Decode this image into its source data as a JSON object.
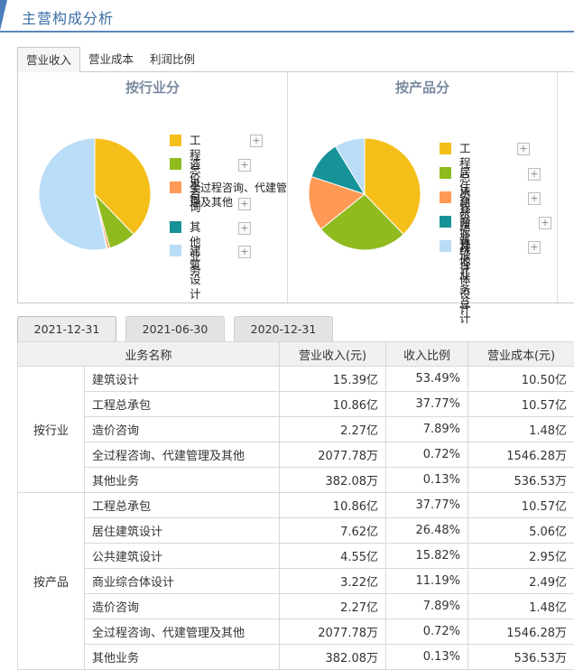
{
  "header": {
    "title": "主营构成分析"
  },
  "top_tabs": [
    {
      "label": "营业收入",
      "active": true
    },
    {
      "label": "营业成本",
      "active": false
    },
    {
      "label": "利润比例",
      "active": false
    }
  ],
  "chart_data": [
    {
      "type": "pie",
      "title": "按行业分",
      "categories": [
        "工程总承包",
        "造价咨询",
        "全过程咨询、代建管理及其他",
        "其他业务",
        "建筑设计"
      ],
      "values": [
        37.77,
        7.89,
        0.72,
        0.13,
        53.49
      ],
      "colors": [
        "#f5bf1a",
        "#8fbb1f",
        "#ff9955",
        "#179397",
        "#b9dcf7"
      ],
      "legend_position": "right"
    },
    {
      "type": "pie",
      "title": "按产品分",
      "categories": [
        "工程总承包",
        "居住建筑设计",
        "公共建筑设计",
        "商业综合体设计",
        "其他业务总计"
      ],
      "values": [
        37.77,
        26.48,
        15.82,
        11.19,
        8.74
      ],
      "colors": [
        "#f5bf1a",
        "#8fbb1f",
        "#ff9955",
        "#179397",
        "#b9dcf7"
      ],
      "legend_position": "right"
    }
  ],
  "legend_plus_icon": "plus-icon",
  "date_tabs": [
    {
      "label": "2021-12-31",
      "active": true
    },
    {
      "label": "2021-06-30",
      "active": false
    },
    {
      "label": "2020-12-31",
      "active": false
    }
  ],
  "table": {
    "headers": [
      "业务名称",
      "营业收入(元)",
      "收入比例",
      "营业成本(元)"
    ],
    "groups": [
      {
        "name": "按行业",
        "rows": [
          {
            "name": "建筑设计",
            "revenue": "15.39亿",
            "ratio": "53.49%",
            "cost": "10.50亿"
          },
          {
            "name": "工程总承包",
            "revenue": "10.86亿",
            "ratio": "37.77%",
            "cost": "10.57亿"
          },
          {
            "name": "造价咨询",
            "revenue": "2.27亿",
            "ratio": "7.89%",
            "cost": "1.48亿"
          },
          {
            "name": "全过程咨询、代建管理及其他",
            "revenue": "2077.78万",
            "ratio": "0.72%",
            "cost": "1546.28万"
          },
          {
            "name": "其他业务",
            "revenue": "382.08万",
            "ratio": "0.13%",
            "cost": "536.53万"
          }
        ]
      },
      {
        "name": "按产品",
        "rows": [
          {
            "name": "工程总承包",
            "revenue": "10.86亿",
            "ratio": "37.77%",
            "cost": "10.57亿"
          },
          {
            "name": "居住建筑设计",
            "revenue": "7.62亿",
            "ratio": "26.48%",
            "cost": "5.06亿"
          },
          {
            "name": "公共建筑设计",
            "revenue": "4.55亿",
            "ratio": "15.82%",
            "cost": "2.95亿"
          },
          {
            "name": "商业综合体设计",
            "revenue": "3.22亿",
            "ratio": "11.19%",
            "cost": "2.49亿"
          },
          {
            "name": "造价咨询",
            "revenue": "2.27亿",
            "ratio": "7.89%",
            "cost": "1.48亿"
          },
          {
            "name": "全过程咨询、代建管理及其他",
            "revenue": "2077.78万",
            "ratio": "0.72%",
            "cost": "1546.28万"
          },
          {
            "name": "其他业务",
            "revenue": "382.08万",
            "ratio": "0.13%",
            "cost": "536.53万"
          }
        ]
      }
    ]
  }
}
